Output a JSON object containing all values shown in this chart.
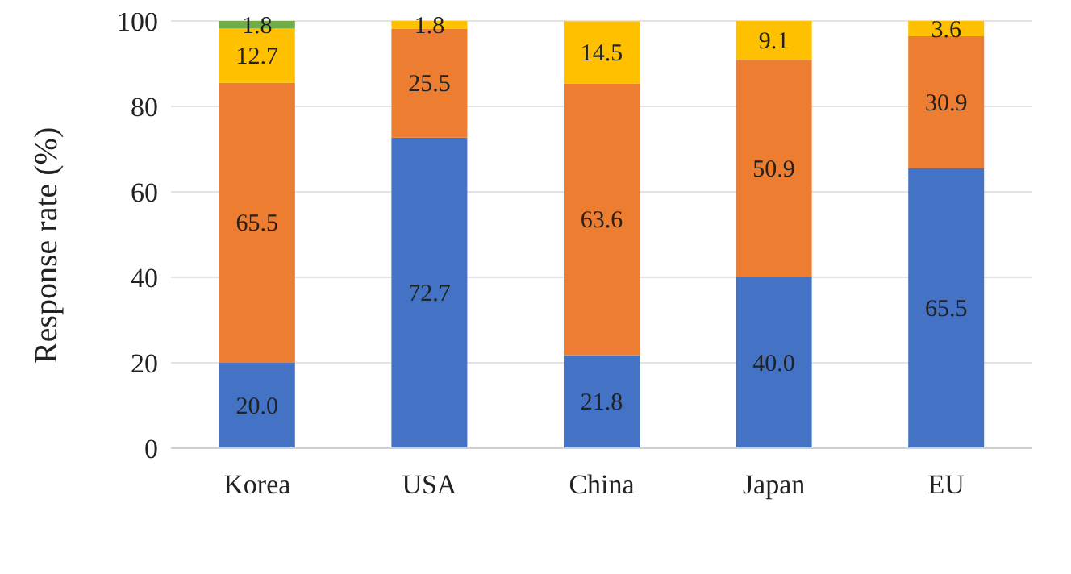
{
  "chart_data": {
    "type": "bar",
    "stacked": true,
    "ylabel": "Response  rate (%)",
    "categories": [
      "Korea",
      "USA",
      "China",
      "Japan",
      "EU"
    ],
    "ylim": [
      0,
      100
    ],
    "yticks": [
      0,
      20,
      40,
      60,
      80,
      100
    ],
    "grid": "y",
    "legend": false,
    "series": [
      {
        "color": "#4472c4",
        "values": [
          20.0,
          72.7,
          21.8,
          40.0,
          65.5
        ],
        "value_labels": [
          "20.0",
          "72.7",
          "21.8",
          "40.0",
          "65.5"
        ]
      },
      {
        "color": "#ed7d31",
        "values": [
          65.5,
          25.5,
          63.6,
          50.9,
          30.9
        ],
        "value_labels": [
          "65.5",
          "25.5",
          "63.6",
          "50.9",
          "30.9"
        ]
      },
      {
        "color": "#ffc000",
        "values": [
          12.7,
          1.8,
          14.5,
          9.1,
          3.6
        ],
        "value_labels": [
          "12.7",
          "1.8",
          "14.5",
          "9.1",
          "3.6"
        ]
      },
      {
        "color": "#70ad47",
        "values": [
          1.8,
          null,
          null,
          null,
          null
        ],
        "value_labels": [
          "1.8",
          null,
          null,
          null,
          null
        ]
      }
    ]
  }
}
